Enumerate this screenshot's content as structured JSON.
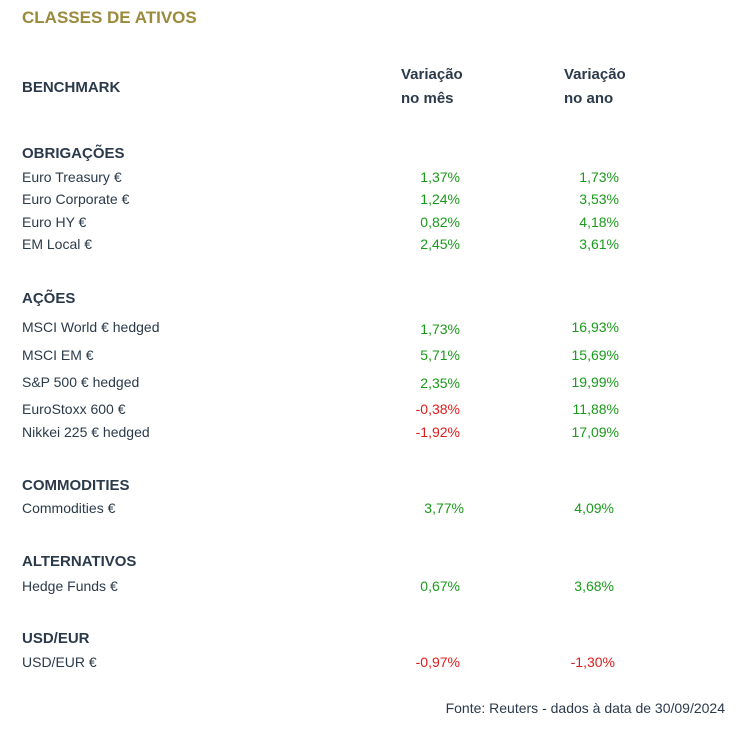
{
  "title": "CLASSES DE ATIVOS",
  "header": {
    "benchmark": "BENCHMARK",
    "col_month_line1": "Variação",
    "col_month_line2": "no mês",
    "col_year_line1": "Variação",
    "col_year_line2": "no ano"
  },
  "sections": [
    {
      "name": "OBRIGAÇÕES",
      "rows": [
        {
          "label": "Euro Treasury €",
          "month": "1,37%",
          "year": "1,73%"
        },
        {
          "label": "Euro Corporate €",
          "month": "1,24%",
          "year": "3,53%"
        },
        {
          "label": "Euro HY €",
          "month": "0,82%",
          "year": "4,18%"
        },
        {
          "label": "EM Local €",
          "month": "2,45%",
          "year": "3,61%"
        }
      ]
    },
    {
      "name": "AÇÕES",
      "rows": [
        {
          "label": "MSCI World € hedged",
          "month": "1,73%",
          "year": "16,93%"
        },
        {
          "label": "MSCI EM €",
          "month": "5,71%",
          "year": "15,69%"
        },
        {
          "label": "S&P 500 € hedged",
          "month": "2,35%",
          "year": "19,99%"
        },
        {
          "label": "EuroStoxx 600 €",
          "month": "-0,38%",
          "year": "11,88%"
        },
        {
          "label": "Nikkei 225 € hedged",
          "month": "-1,92%",
          "year": "17,09%"
        }
      ]
    },
    {
      "name": "COMMODITIES",
      "rows": [
        {
          "label": "Commodities €",
          "month": "3,77%",
          "year": "4,09%"
        }
      ]
    },
    {
      "name": "ALTERNATIVOS",
      "rows": [
        {
          "label": "Hedge Funds €",
          "month": "0,67%",
          "year": "3,68%"
        }
      ]
    },
    {
      "name": "USD/EUR",
      "rows": [
        {
          "label": "USD/EUR €",
          "month": "-0,97%",
          "year": "-1,30%"
        }
      ]
    }
  ],
  "colors": {
    "positive": "#1a9a1a",
    "negative": "#e01b1b",
    "title": "#9b8a3c"
  },
  "source": "Fonte: Reuters - dados à data de 30/09/2024"
}
